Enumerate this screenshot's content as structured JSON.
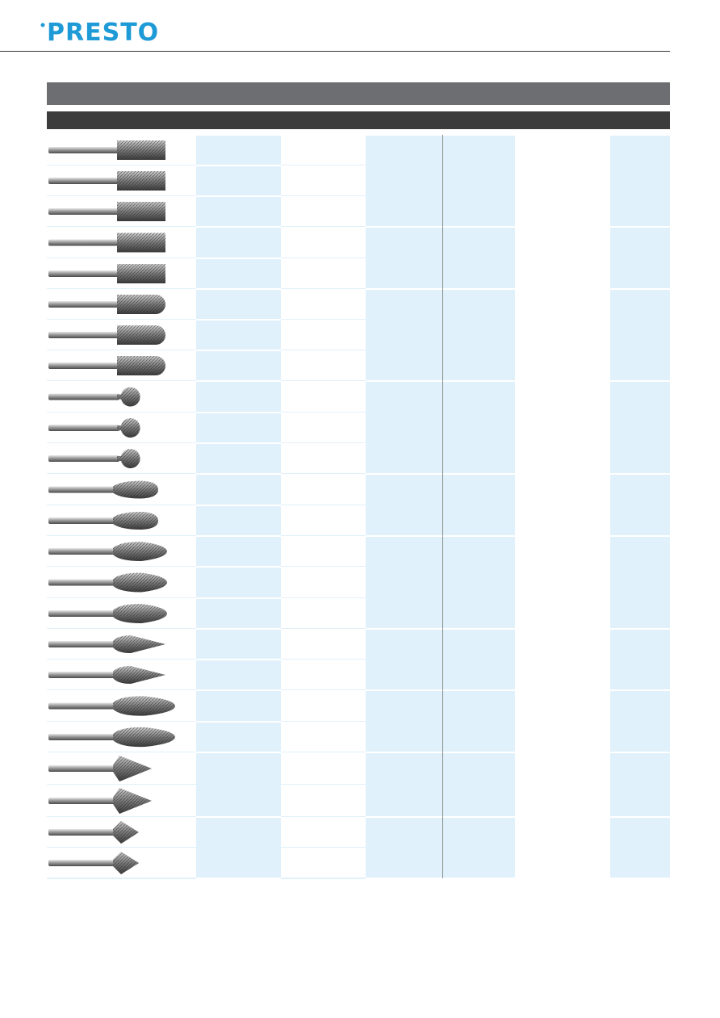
{
  "header": {
    "logo": "PRESTO"
  }
}
